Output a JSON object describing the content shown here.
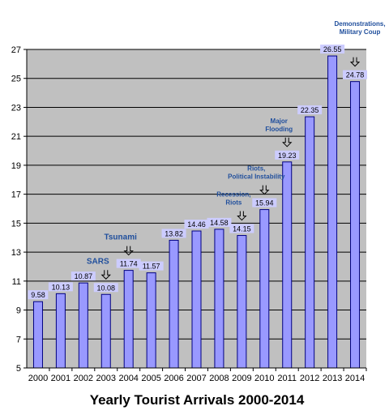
{
  "chart_data": {
    "type": "bar",
    "title": "Yearly Tourist Arrivals 2000-2014",
    "xlabel": "",
    "ylabel": "",
    "categories": [
      "2000",
      "2001",
      "2002",
      "2003",
      "2004",
      "2005",
      "2006",
      "2007",
      "2008",
      "2009",
      "2010",
      "2011",
      "2012",
      "2013",
      "2014"
    ],
    "values": [
      9.58,
      10.13,
      10.87,
      10.08,
      11.74,
      11.57,
      13.82,
      14.46,
      14.58,
      14.15,
      15.94,
      19.23,
      22.35,
      26.55,
      24.78
    ],
    "data_labels": [
      "9.58",
      "10.13",
      "10.87",
      "10.08",
      "11.74",
      "11.57",
      "13.82",
      "14.46",
      "14.58",
      "14.15",
      "15.94",
      "19.23",
      "22.35",
      "26.55",
      "24.78"
    ],
    "ylim": [
      5,
      27
    ],
    "yticks": [
      5,
      7,
      9,
      11,
      13,
      15,
      17,
      19,
      21,
      23,
      25,
      27
    ],
    "grid": true,
    "legend": "none",
    "colors": {
      "bar_fill": "#9999ff",
      "bar_stroke": "#000080",
      "plot_bg": "#c0c0c0",
      "gridline": "#000000",
      "label_bg": "#ccccff",
      "event_text": "#1f4e9c"
    },
    "annotations": [
      {
        "category": "2003",
        "lines": [
          "SARS"
        ],
        "style": "big"
      },
      {
        "category": "2004",
        "lines": [
          "Tsunami"
        ],
        "style": "big"
      },
      {
        "category": "2009",
        "lines": [
          "Recession,",
          "Riots"
        ],
        "style": "small"
      },
      {
        "category": "2010",
        "lines": [
          "Riots,",
          "Political Instability"
        ],
        "style": "small"
      },
      {
        "category": "2011",
        "lines": [
          "Major",
          "Flooding"
        ],
        "style": "small"
      },
      {
        "category": "2014",
        "lines": [
          "Demonstrations,",
          "Military Coup"
        ],
        "style": "small"
      }
    ]
  }
}
